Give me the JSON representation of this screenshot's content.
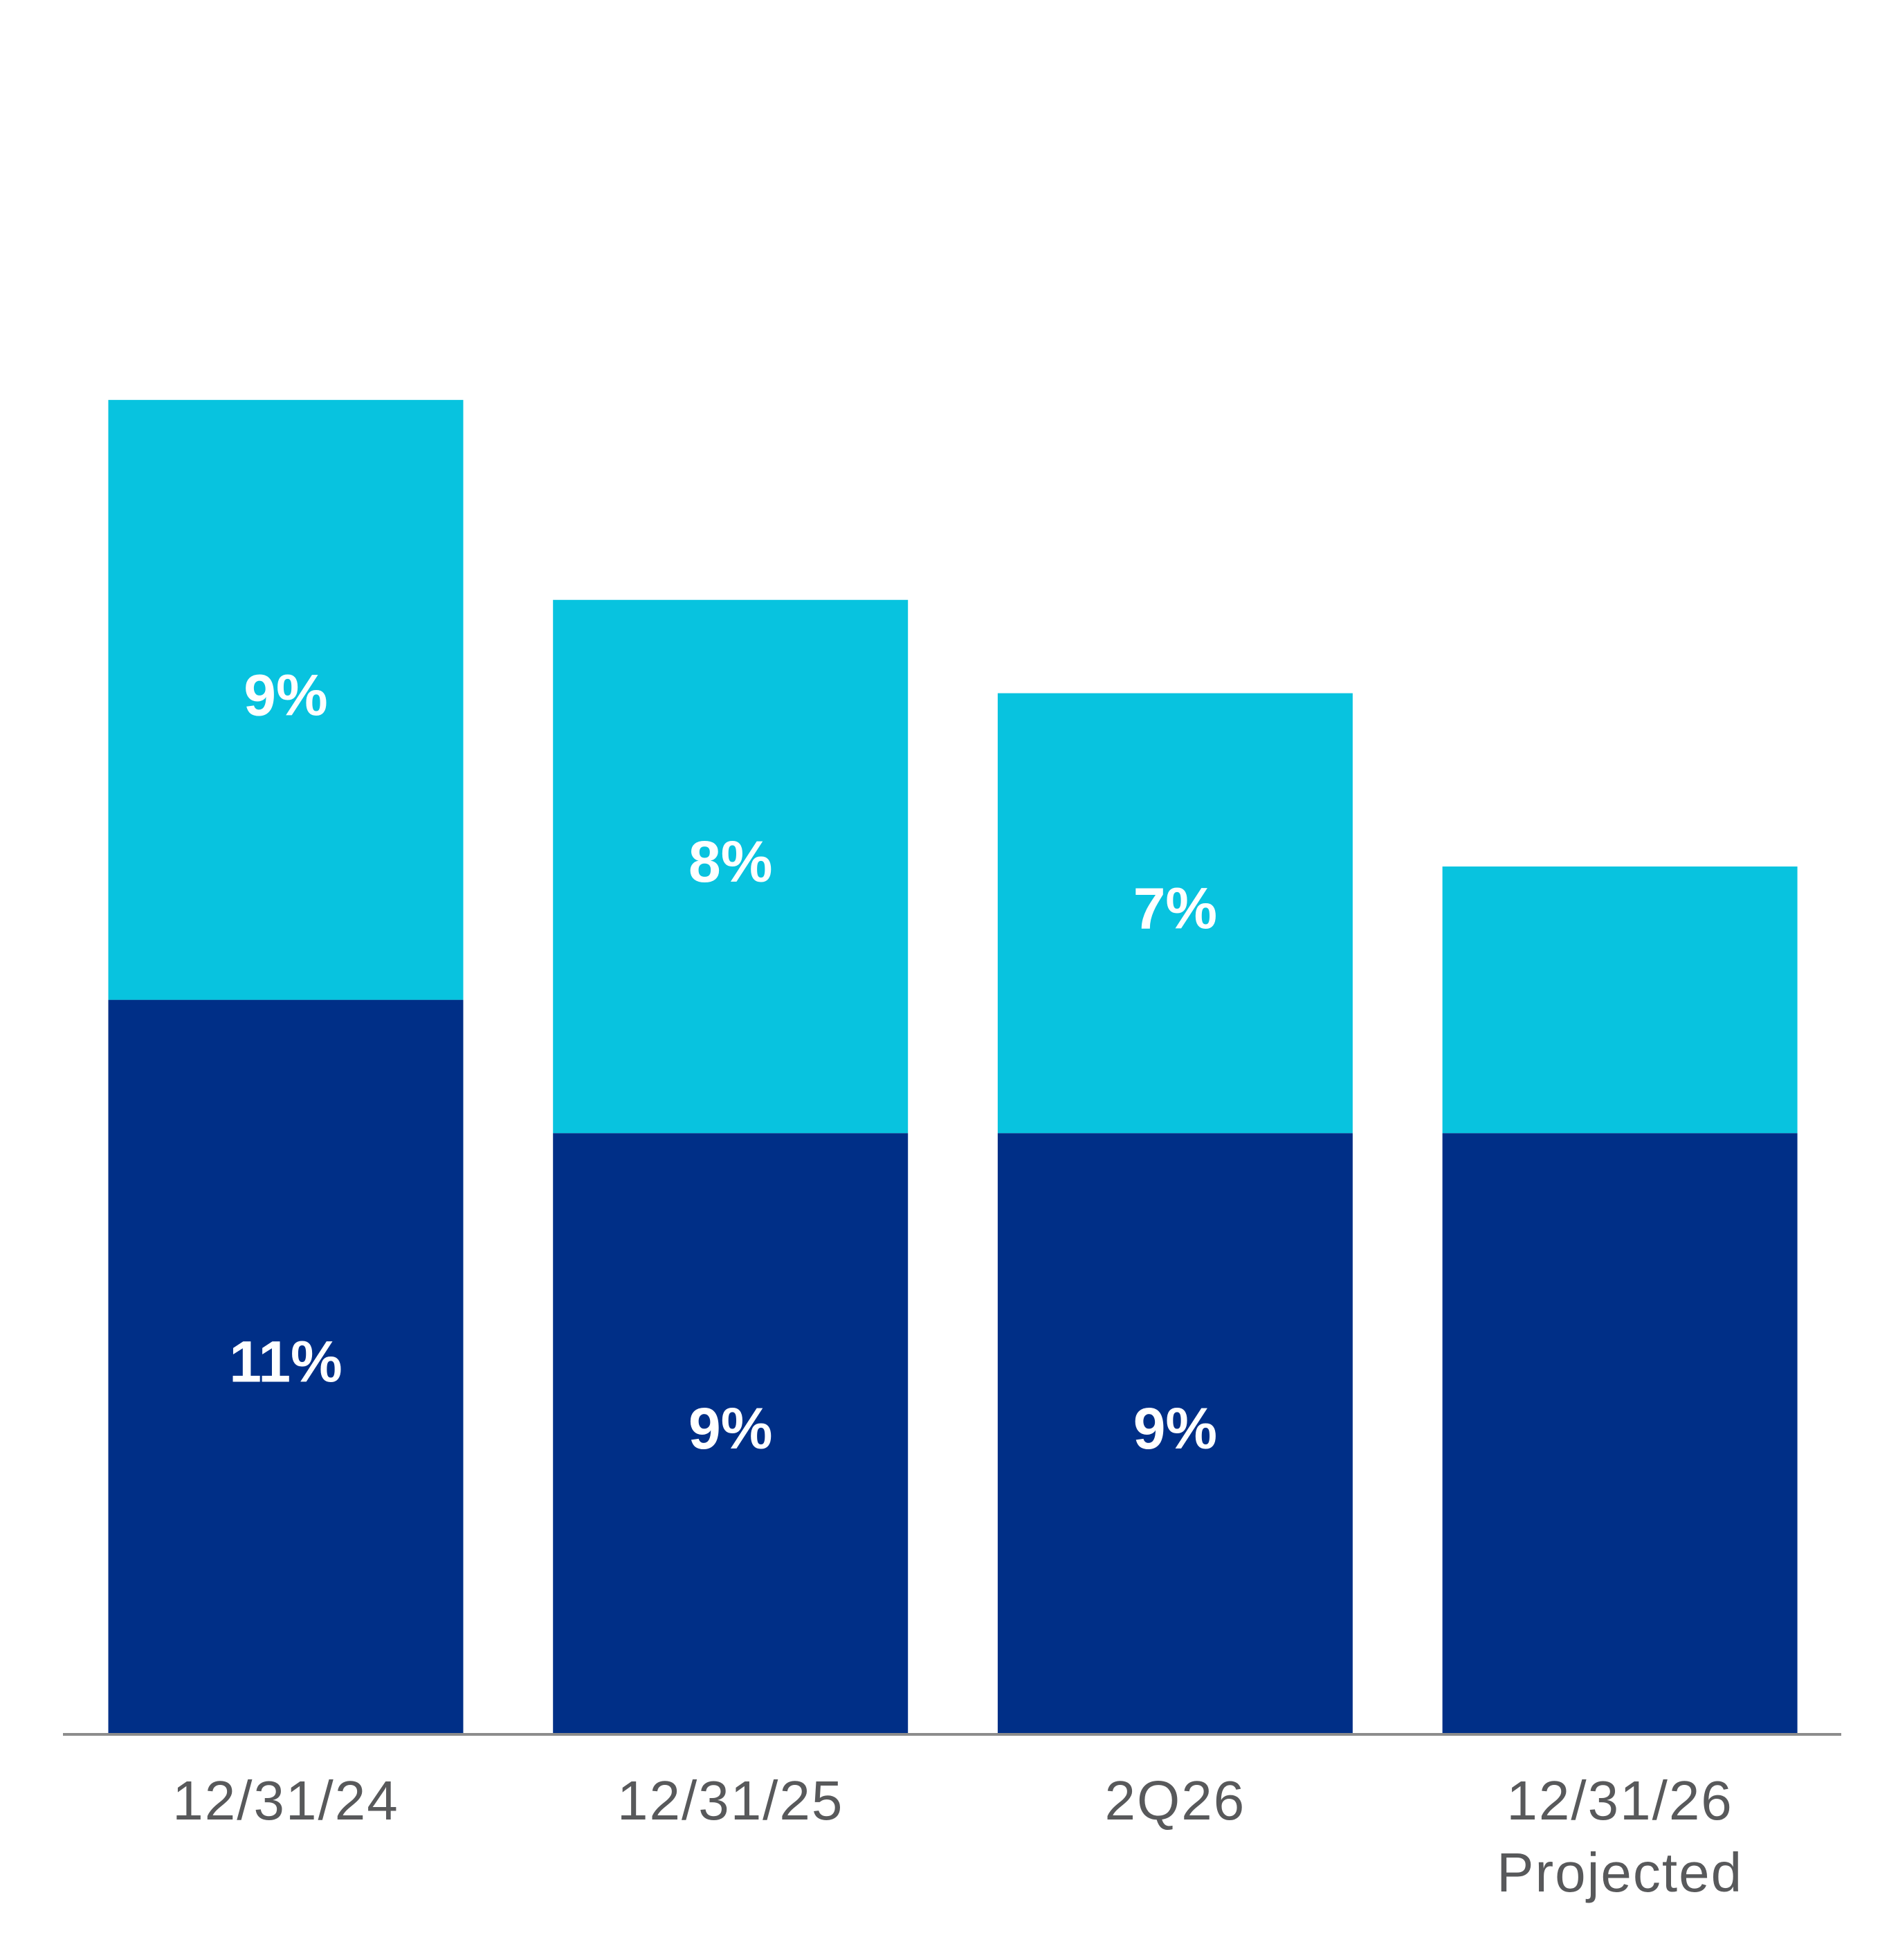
{
  "chart_data": {
    "type": "stacked_bar",
    "categories": [
      "12/31/24",
      "12/31/25",
      "2Q26",
      "12/31/26\nProjected"
    ],
    "series": [
      {
        "color": "#002f87",
        "values": [
          11,
          9,
          9,
          9
        ],
        "value_labels": [
          "11%",
          "9%",
          "9%",
          null
        ]
      },
      {
        "color": "#08c3df",
        "values": [
          9,
          8,
          6.6,
          4
        ],
        "value_labels": [
          "9%",
          "8%",
          "7%",
          null
        ]
      }
    ],
    "ylim": [
      0,
      26
    ]
  }
}
